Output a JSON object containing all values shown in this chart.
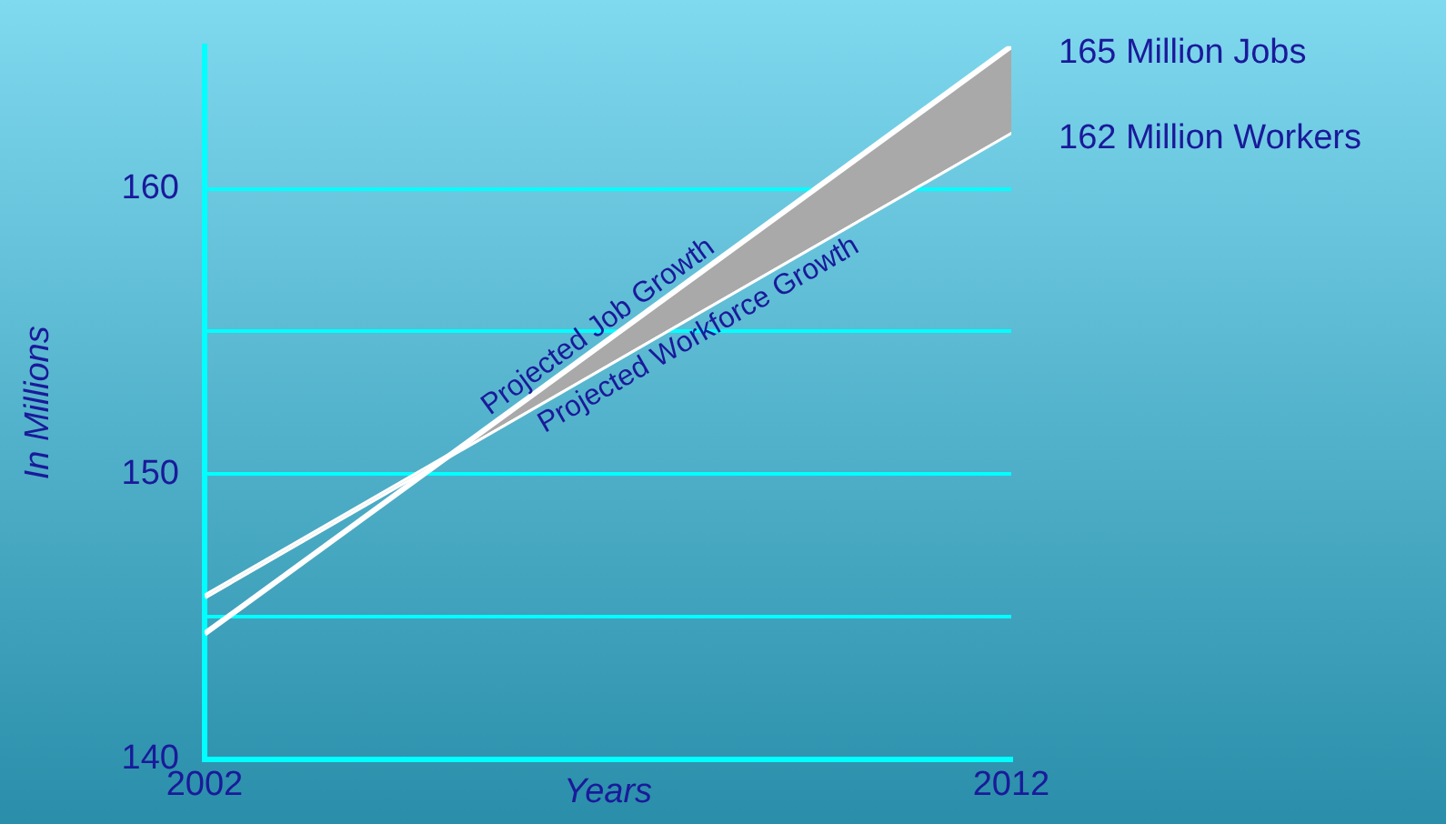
{
  "chart_data": {
    "type": "line",
    "xlabel": "Years",
    "ylabel": "In Millions",
    "x": [
      2002,
      2012
    ],
    "series": [
      {
        "name": "Projected Job Growth",
        "color": "#ffffff",
        "values": [
          144.4,
          165
        ]
      },
      {
        "name": "Projected Workforce Growth",
        "color": "#ffffff",
        "values": [
          145.7,
          162
        ]
      }
    ],
    "xlim": [
      2002,
      2012
    ],
    "xticks": [
      2002,
      2012
    ],
    "ylim": [
      140,
      165
    ],
    "yticks": [
      140,
      {
        "value": 145,
        "label": null
      },
      150,
      {
        "value": 155,
        "label": null
      },
      160
    ],
    "grid": "y",
    "legend": false,
    "marker": "none",
    "line_style": "solid",
    "annotations": [
      {
        "text": "165 Million Jobs",
        "x": 2012,
        "y": 165
      },
      {
        "text": "162 Million Workers",
        "x": 2012,
        "y": 162
      }
    ]
  }
}
